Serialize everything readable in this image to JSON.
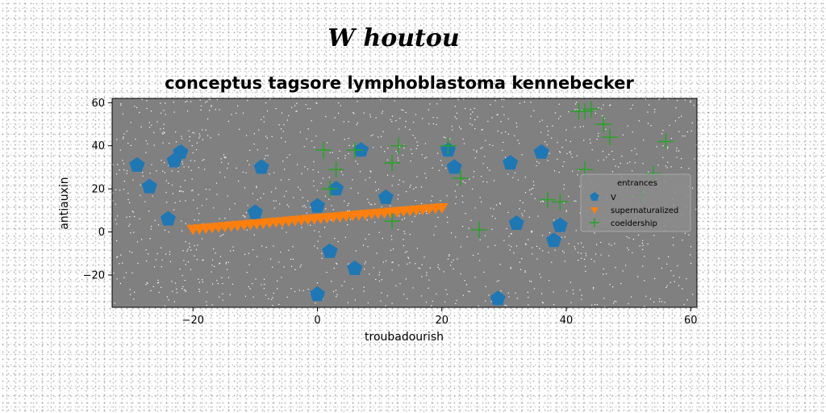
{
  "chart_data": {
    "type": "scatter",
    "suptitle": "W houtou",
    "title": "conceptus tagsore lymphoblastoma kennebecker",
    "xlabel": "troubadourish",
    "ylabel": "antiauxin",
    "xlim": [
      -33,
      61
    ],
    "ylim": [
      -35,
      62
    ],
    "xticks": [
      -20,
      0,
      20,
      40,
      60
    ],
    "yticks": [
      -20,
      0,
      20,
      40,
      60
    ],
    "xtick_labels": [
      "−20",
      "0",
      "20",
      "40",
      "60"
    ],
    "ytick_labels": [
      "−20",
      "0",
      "20",
      "40",
      "60"
    ],
    "grid": false,
    "background_color": "#808080",
    "legend": {
      "title": "entrances",
      "position": "center-right"
    },
    "series": [
      {
        "name": "V",
        "marker": "pentagon",
        "color": "#1f77b4",
        "points": [
          [
            -29,
            31
          ],
          [
            -27,
            21
          ],
          [
            -23,
            33
          ],
          [
            -22,
            37
          ],
          [
            -24,
            6
          ],
          [
            -9,
            30
          ],
          [
            -10,
            9
          ],
          [
            0,
            12
          ],
          [
            0,
            -29
          ],
          [
            2,
            -9
          ],
          [
            3,
            20
          ],
          [
            6,
            -17
          ],
          [
            7,
            38
          ],
          [
            11,
            16
          ],
          [
            21,
            38
          ],
          [
            22,
            30
          ],
          [
            29,
            -31
          ],
          [
            31,
            32
          ],
          [
            32,
            4
          ],
          [
            36,
            37
          ],
          [
            38,
            -4
          ],
          [
            39,
            3
          ]
        ]
      },
      {
        "name": "supernaturalized",
        "marker": "triangle-down",
        "color": "#ff7f0e",
        "line": {
          "x_start": -20,
          "x_end": 20,
          "y_start": 1.5,
          "y_end": 11.5,
          "count": 40
        }
      },
      {
        "name": "coeldership",
        "marker": "plus",
        "color": "#2ca02c",
        "points": [
          [
            1,
            38
          ],
          [
            2,
            20
          ],
          [
            3,
            29
          ],
          [
            6,
            38
          ],
          [
            12,
            32
          ],
          [
            13,
            40
          ],
          [
            12,
            5
          ],
          [
            21,
            40
          ],
          [
            23,
            25
          ],
          [
            26,
            1
          ],
          [
            37,
            15
          ],
          [
            39,
            14
          ],
          [
            42,
            56
          ],
          [
            43,
            56
          ],
          [
            44,
            57
          ],
          [
            43,
            29
          ],
          [
            46,
            50
          ],
          [
            47,
            44
          ],
          [
            52,
            17
          ],
          [
            54,
            27
          ],
          [
            56,
            42
          ]
        ]
      }
    ]
  }
}
